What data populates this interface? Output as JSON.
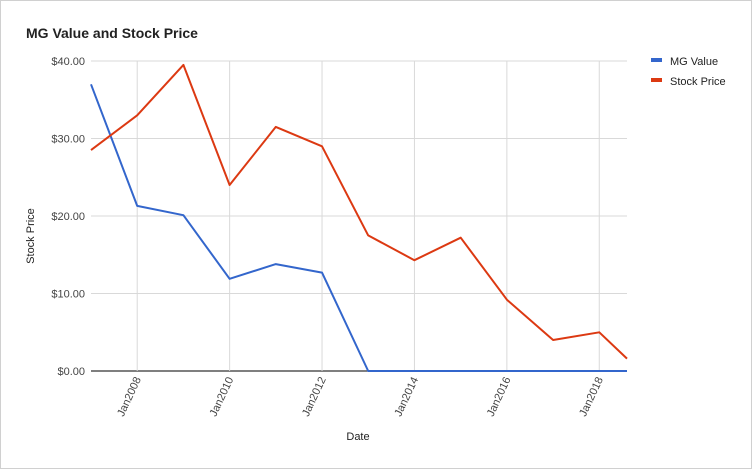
{
  "chart_data": {
    "type": "line",
    "title": "MG Value and Stock Price",
    "xlabel": "Date",
    "ylabel": "Stock Price",
    "ylim": [
      0,
      40
    ],
    "yticks": [
      "$0.00",
      "$10.00",
      "$20.00",
      "$30.00",
      "$40.00"
    ],
    "ytick_values": [
      0,
      10,
      20,
      30,
      40
    ],
    "xlim": [
      2007,
      2018.6
    ],
    "xticks": [
      "Jan2008",
      "Jan2010",
      "Jan2012",
      "Jan2014",
      "Jan2016",
      "Jan2018"
    ],
    "xtick_values": [
      2008,
      2010,
      2012,
      2014,
      2016,
      2018
    ],
    "grid": true,
    "legend_position": "right",
    "series": [
      {
        "name": "MG Value",
        "color": "#3366cc",
        "x": [
          2007,
          2008,
          2009,
          2010,
          2011,
          2012,
          2013,
          2014,
          2015,
          2016,
          2017,
          2018,
          2018.6
        ],
        "values": [
          37.0,
          21.3,
          20.1,
          11.9,
          13.8,
          12.7,
          0,
          0,
          0,
          0,
          0,
          0,
          0
        ]
      },
      {
        "name": "Stock Price",
        "color": "#dc3912",
        "x": [
          2007,
          2008,
          2009,
          2010,
          2011,
          2012,
          2013,
          2014,
          2015,
          2016,
          2017,
          2018,
          2018.6
        ],
        "values": [
          28.5,
          33.0,
          39.5,
          24.0,
          31.5,
          29.0,
          17.5,
          14.3,
          17.2,
          9.2,
          4.0,
          5.0,
          1.6
        ]
      }
    ]
  }
}
